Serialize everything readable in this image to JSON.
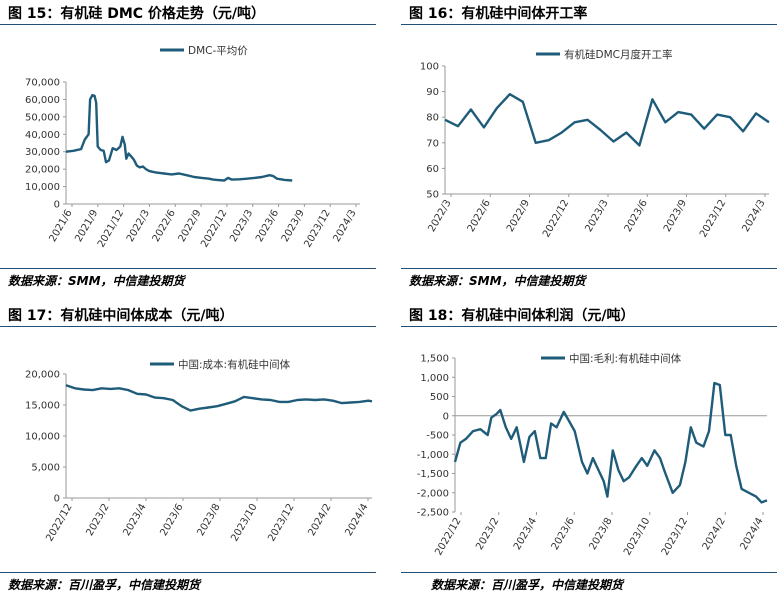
{
  "chart_data": [
    {
      "type": "line",
      "title": "图 15：有机硅 DMC 价格走势（元/吨）",
      "legend": "DMC-平均价",
      "legend_position": "top-center",
      "source": "数据来源：SMM，中信建投期货",
      "series_color": "#1f5c7a",
      "ylim": [
        0,
        70000
      ],
      "yticks": [
        "70,000",
        "60,000",
        "50,000",
        "40,000",
        "30,000",
        "20,000",
        "10,000",
        "0"
      ],
      "xticks": [
        "2021/6",
        "2021/9",
        "2021/12",
        "2022/3",
        "2022/6",
        "2022/9",
        "2022/12",
        "2023/3",
        "2023/6",
        "2023/9",
        "2023/12",
        "2024/3"
      ],
      "x_range": [
        0,
        39
      ],
      "points": [
        [
          0,
          30000
        ],
        [
          1,
          30500
        ],
        [
          2,
          31500
        ],
        [
          2.5,
          37000
        ],
        [
          3,
          40000
        ],
        [
          3.2,
          60000
        ],
        [
          3.5,
          62500
        ],
        [
          3.8,
          62000
        ],
        [
          4,
          58000
        ],
        [
          4.2,
          33000
        ],
        [
          4.6,
          31000
        ],
        [
          5,
          30500
        ],
        [
          5.3,
          24000
        ],
        [
          5.7,
          25000
        ],
        [
          6.2,
          32000
        ],
        [
          6.7,
          31000
        ],
        [
          7.2,
          33000
        ],
        [
          7.5,
          38500
        ],
        [
          7.8,
          34000
        ],
        [
          8,
          26000
        ],
        [
          8.3,
          29000
        ],
        [
          8.7,
          27000
        ],
        [
          9,
          25500
        ],
        [
          9.4,
          22000
        ],
        [
          9.8,
          21000
        ],
        [
          10.2,
          21500
        ],
        [
          10.6,
          20000
        ],
        [
          11,
          19000
        ],
        [
          11.5,
          18500
        ],
        [
          12,
          18000
        ],
        [
          13,
          17500
        ],
        [
          14,
          17000
        ],
        [
          15,
          17500
        ],
        [
          16,
          16500
        ],
        [
          17,
          15500
        ],
        [
          18,
          15000
        ],
        [
          19,
          14500
        ],
        [
          19.5,
          14000
        ],
        [
          20,
          13800
        ],
        [
          21,
          13500
        ],
        [
          21.5,
          15000
        ],
        [
          22,
          14000
        ],
        [
          23,
          14200
        ],
        [
          24,
          14500
        ],
        [
          25,
          15000
        ],
        [
          26,
          15500
        ],
        [
          27,
          16500
        ],
        [
          27.5,
          16000
        ],
        [
          28,
          14500
        ],
        [
          29,
          13800
        ],
        [
          30,
          13500
        ]
      ]
    },
    {
      "type": "line",
      "title": "图 16：有机硅中间体开工率",
      "legend": "有机硅DMC月度开工率",
      "legend_position": "top-center",
      "source": "数据来源：SMM，中信建投期货",
      "series_color": "#1f5c7a",
      "ylim": [
        50,
        100
      ],
      "yticks": [
        "100",
        "90",
        "80",
        "70",
        "60",
        "50"
      ],
      "xticks": [
        "2022/3",
        "2022/6",
        "2022/9",
        "2022/12",
        "2023/3",
        "2023/6",
        "2023/9",
        "2023/12",
        "2024/3"
      ],
      "x_range": [
        0,
        25
      ],
      "points": [
        [
          0,
          79
        ],
        [
          1,
          76.5
        ],
        [
          2,
          83
        ],
        [
          3,
          76
        ],
        [
          4,
          83.5
        ],
        [
          5,
          89
        ],
        [
          6,
          86
        ],
        [
          7,
          70
        ],
        [
          8,
          71
        ],
        [
          9,
          74
        ],
        [
          10,
          78
        ],
        [
          11,
          79
        ],
        [
          12,
          75
        ],
        [
          13,
          70.5
        ],
        [
          14,
          74
        ],
        [
          15,
          69
        ],
        [
          16,
          87
        ],
        [
          17,
          78
        ],
        [
          18,
          82
        ],
        [
          19,
          81
        ],
        [
          20,
          75.5
        ],
        [
          21,
          81
        ],
        [
          22,
          80
        ],
        [
          23,
          74.5
        ],
        [
          24,
          81.5
        ],
        [
          25,
          78
        ]
      ]
    },
    {
      "type": "line",
      "title": "图 17：有机硅中间体成本（元/吨）",
      "legend": "中国:成本:有机硅中间体",
      "legend_position": "top-center",
      "source": "数据来源：百川盈孚，中信建投期货",
      "series_color": "#1f5c7a",
      "ylim": [
        0,
        20000
      ],
      "yticks": [
        "20,000",
        "15,000",
        "10,000",
        "5,000",
        "0"
      ],
      "xticks": [
        "2022/12",
        "2023/2",
        "2023/4",
        "2023/6",
        "2023/8",
        "2023/10",
        "2023/12",
        "2024/2",
        "2024/4"
      ],
      "x_range": [
        0,
        17.2
      ],
      "points": [
        [
          0,
          18200
        ],
        [
          0.5,
          17700
        ],
        [
          1,
          17500
        ],
        [
          1.5,
          17400
        ],
        [
          2,
          17700
        ],
        [
          2.5,
          17600
        ],
        [
          3,
          17700
        ],
        [
          3.5,
          17400
        ],
        [
          4,
          16800
        ],
        [
          4.5,
          16700
        ],
        [
          5,
          16200
        ],
        [
          5.5,
          16100
        ],
        [
          6,
          15800
        ],
        [
          6.5,
          14800
        ],
        [
          7,
          14100
        ],
        [
          7.5,
          14400
        ],
        [
          8,
          14600
        ],
        [
          8.5,
          14800
        ],
        [
          9,
          15200
        ],
        [
          9.5,
          15600
        ],
        [
          10,
          16300
        ],
        [
          10.5,
          16100
        ],
        [
          11,
          15900
        ],
        [
          11.5,
          15800
        ],
        [
          12,
          15500
        ],
        [
          12.5,
          15500
        ],
        [
          13,
          15800
        ],
        [
          13.5,
          15900
        ],
        [
          14,
          15800
        ],
        [
          14.5,
          15900
        ],
        [
          15,
          15700
        ],
        [
          15.5,
          15300
        ],
        [
          16,
          15400
        ],
        [
          16.5,
          15500
        ],
        [
          17,
          15700
        ],
        [
          17.2,
          15600
        ]
      ]
    },
    {
      "type": "line",
      "title": "图 18：有机硅中间体利润（元/吨）",
      "legend": "中国:毛利:有机硅中间体",
      "legend_position": "top-center",
      "source": "数据来源：百川盈孚，中信建投期货",
      "series_color": "#1f5c7a",
      "ylim": [
        -2500,
        1500
      ],
      "yticks": [
        "1,500",
        "1,000",
        "500",
        "0",
        "-500",
        "-1,000",
        "-1,500",
        "-2,000",
        "-2,500"
      ],
      "xticks": [
        "2022/12",
        "2023/2",
        "2023/4",
        "2023/6",
        "2023/8",
        "2023/10",
        "2023/12",
        "2024/2",
        "2024/4"
      ],
      "x_range": [
        0,
        17.2
      ],
      "points": [
        [
          0,
          -1200
        ],
        [
          0.3,
          -700
        ],
        [
          0.6,
          -600
        ],
        [
          1,
          -400
        ],
        [
          1.4,
          -350
        ],
        [
          1.8,
          -500
        ],
        [
          2,
          -50
        ],
        [
          2.3,
          50
        ],
        [
          2.5,
          150
        ],
        [
          2.8,
          -300
        ],
        [
          3.1,
          -600
        ],
        [
          3.4,
          -300
        ],
        [
          3.8,
          -1200
        ],
        [
          4.1,
          -550
        ],
        [
          4.4,
          -400
        ],
        [
          4.7,
          -1100
        ],
        [
          5,
          -1100
        ],
        [
          5.3,
          -200
        ],
        [
          5.6,
          -300
        ],
        [
          6,
          100
        ],
        [
          6.3,
          -150
        ],
        [
          6.6,
          -400
        ],
        [
          7,
          -1200
        ],
        [
          7.3,
          -1500
        ],
        [
          7.6,
          -1100
        ],
        [
          8,
          -1500
        ],
        [
          8.2,
          -1700
        ],
        [
          8.4,
          -2100
        ],
        [
          8.7,
          -900
        ],
        [
          9,
          -1400
        ],
        [
          9.3,
          -1700
        ],
        [
          9.6,
          -1600
        ],
        [
          10,
          -1300
        ],
        [
          10.3,
          -1100
        ],
        [
          10.6,
          -1300
        ],
        [
          11,
          -900
        ],
        [
          11.3,
          -1100
        ],
        [
          11.6,
          -1500
        ],
        [
          12,
          -2000
        ],
        [
          12.4,
          -1800
        ],
        [
          12.7,
          -1200
        ],
        [
          13,
          -300
        ],
        [
          13.3,
          -700
        ],
        [
          13.7,
          -800
        ],
        [
          14,
          -400
        ],
        [
          14.3,
          850
        ],
        [
          14.6,
          800
        ],
        [
          14.9,
          -500
        ],
        [
          15.2,
          -500
        ],
        [
          15.5,
          -1300
        ],
        [
          15.8,
          -1900
        ],
        [
          16.2,
          -2000
        ],
        [
          16.6,
          -2100
        ],
        [
          16.9,
          -2250
        ],
        [
          17.2,
          -2200
        ]
      ]
    }
  ]
}
